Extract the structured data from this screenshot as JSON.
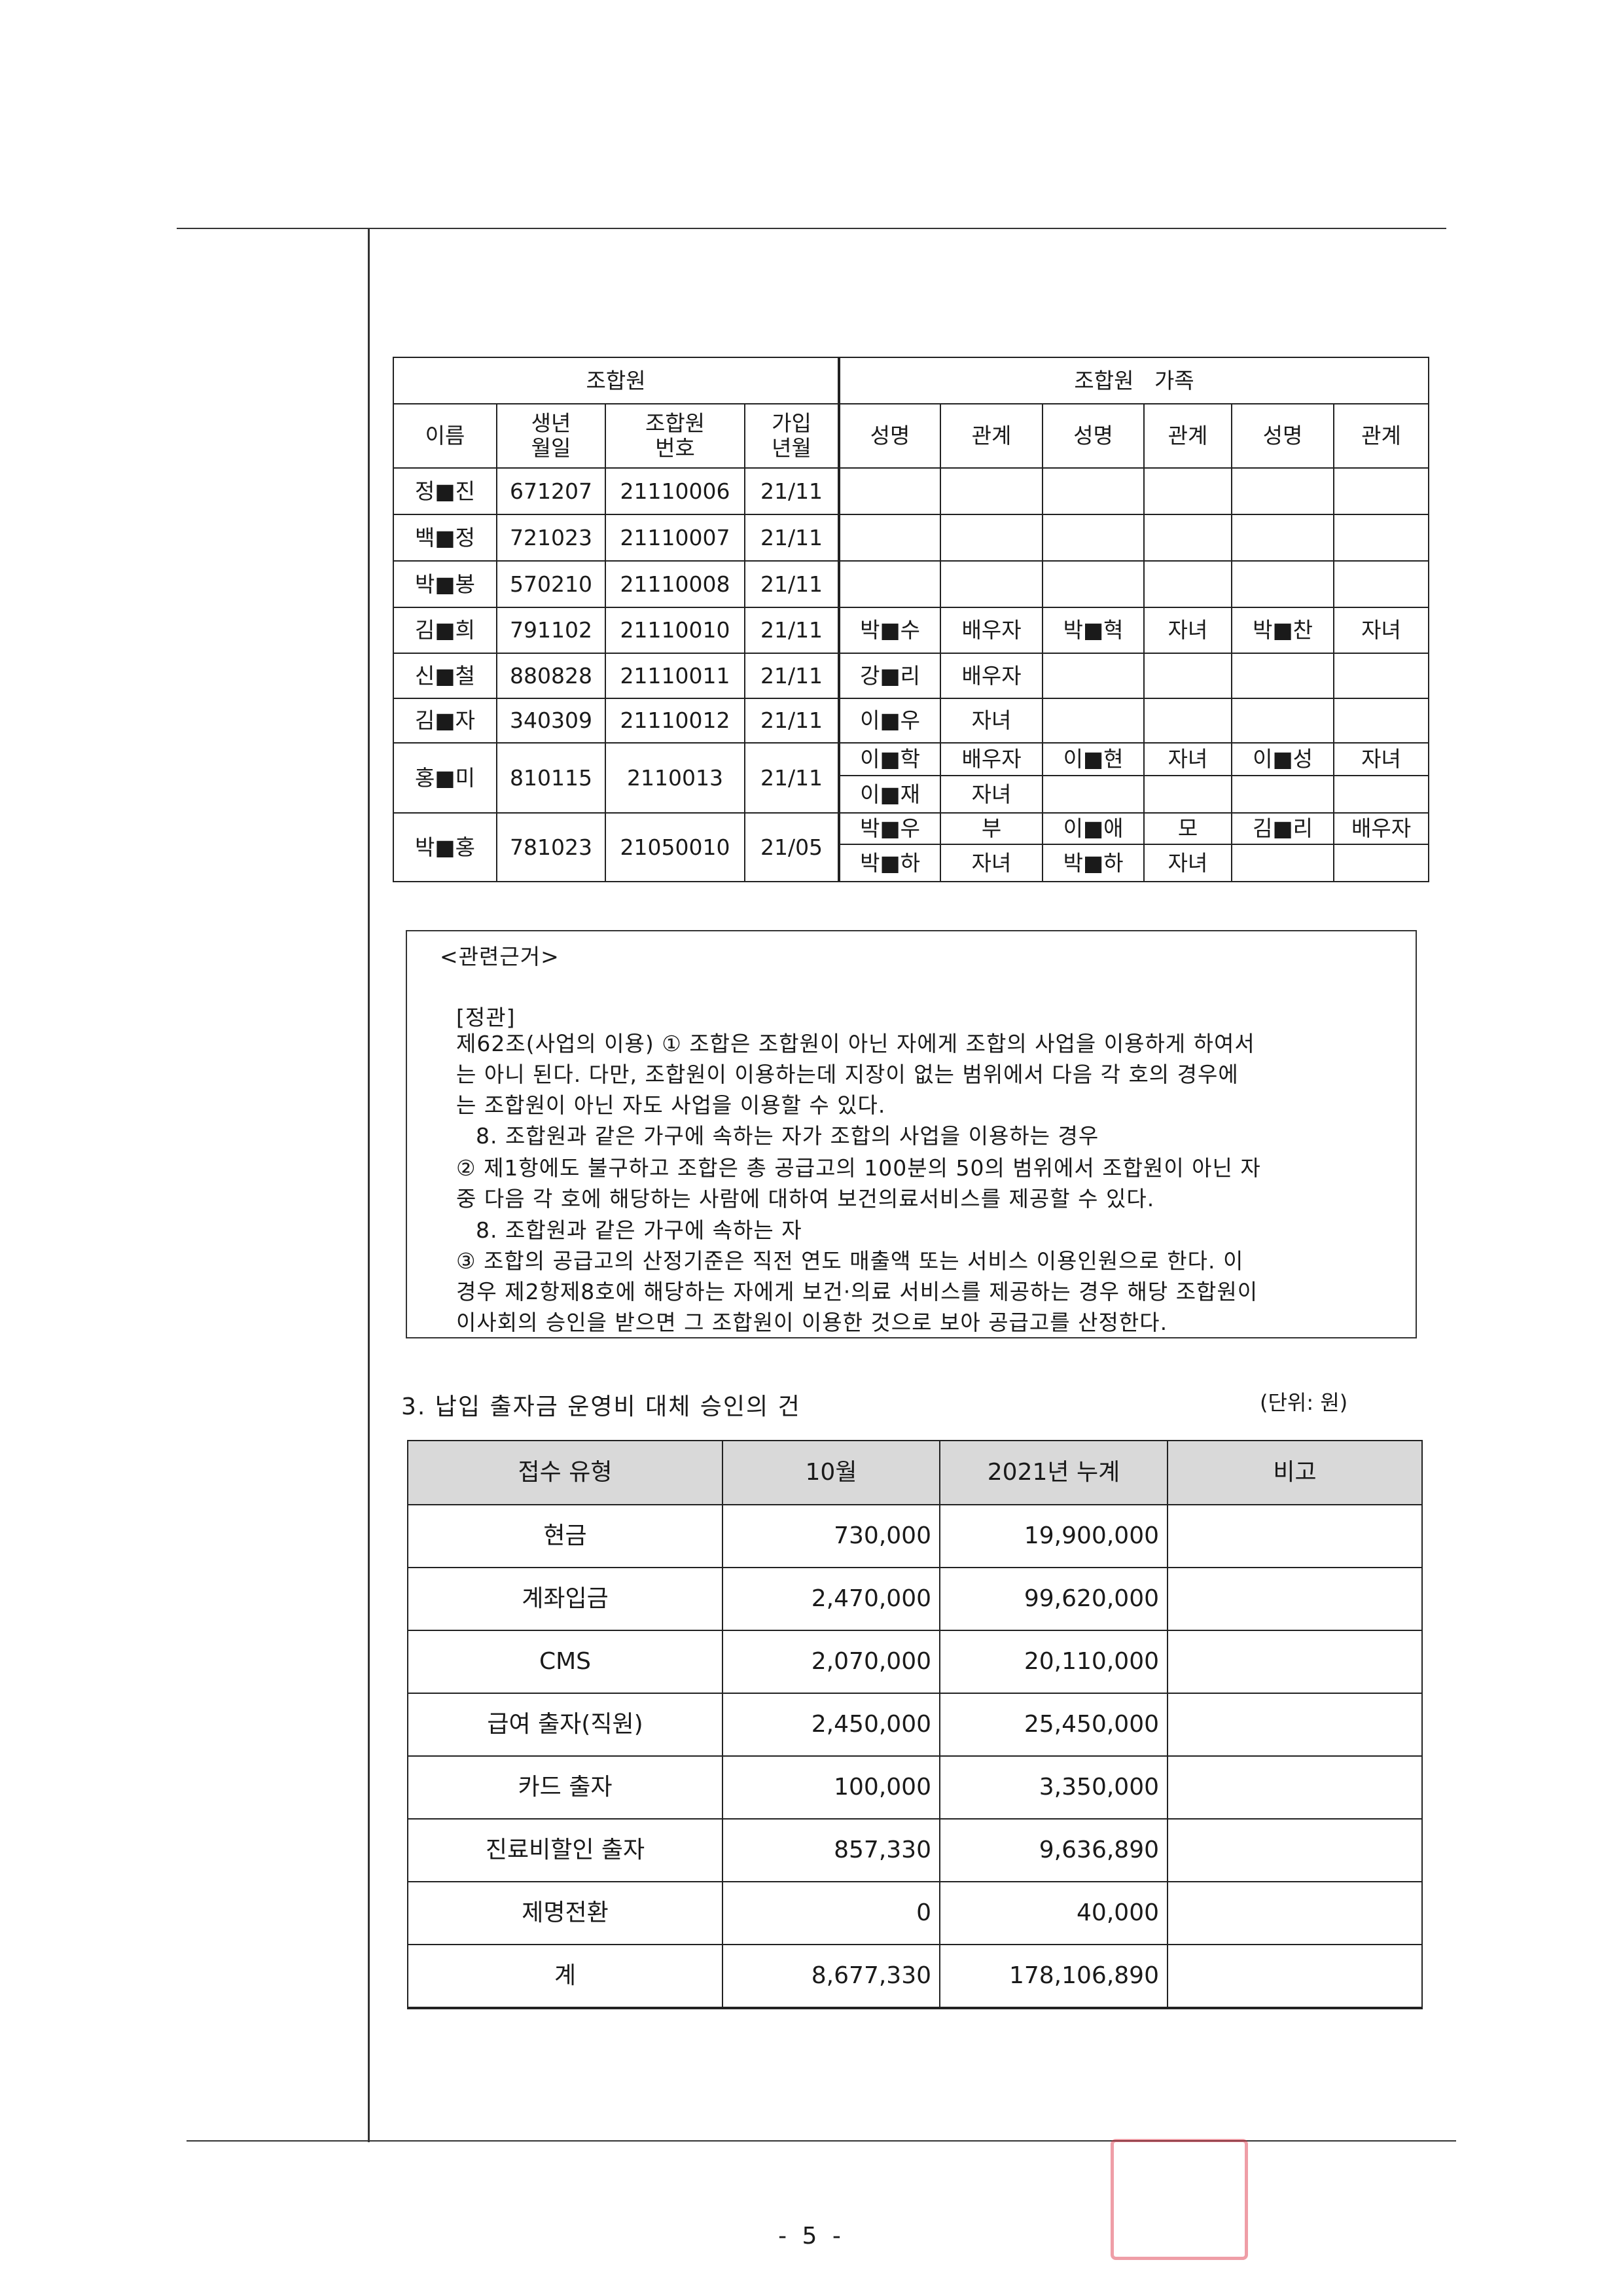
{
  "members_table": {
    "group_headers": [
      "조합원",
      "조합원   가족"
    ],
    "columns": [
      "이름",
      "생년\n월일",
      "조합원\n번호",
      "가입\n년월",
      "성명",
      "관계",
      "성명",
      "관계",
      "성명",
      "관계"
    ],
    "rows": [
      [
        "정■진",
        "671207",
        "21110006",
        "21/11",
        "",
        "",
        "",
        "",
        "",
        ""
      ],
      [
        "백■정",
        "721023",
        "21110007",
        "21/11",
        "",
        "",
        "",
        "",
        "",
        ""
      ],
      [
        "박■봉",
        "570210",
        "21110008",
        "21/11",
        "",
        "",
        "",
        "",
        "",
        ""
      ],
      [
        "김■희",
        "791102",
        "21110010",
        "21/11",
        "박■수",
        "배우자",
        "박■혁",
        "자녀",
        "박■찬",
        "자녀"
      ],
      [
        "신■철",
        "880828",
        "21110011",
        "21/11",
        "강■리",
        "배우자",
        "",
        "",
        "",
        ""
      ],
      [
        "김■자",
        "340309",
        "21110012",
        "21/11",
        "이■우",
        "자녀",
        "",
        "",
        "",
        ""
      ],
      [
        "홍■미",
        "810115",
        "2110013",
        "21/11",
        "이■학",
        "배우자",
        "이■현",
        "자녀",
        "이■성",
        "자녀"
      ],
      [
        "",
        "",
        "",
        "",
        "이■재",
        "자녀",
        "",
        "",
        "",
        ""
      ],
      [
        "박■홍",
        "781023",
        "21050010",
        "21/05",
        "박■우",
        "부",
        "이■애",
        "모",
        "김■리",
        "배우자"
      ],
      [
        "",
        "",
        "",
        "",
        "박■하",
        "자녀",
        "박■하",
        "자녀",
        "",
        ""
      ]
    ]
  },
  "basis_box": {
    "title": "<관련근거>",
    "subtitle": "[정관]",
    "lines": [
      "제62조(사업의 이용) ① 조합은 조합원이 아닌 자에게 조합의 사업을 이용하게 하여서",
      "는 아니 된다. 다만, 조합원이 이용하는데 지장이 없는 범위에서 다음 각 호의 경우에",
      "는 조합원이 아닌 자도 사업을 이용할 수 있다.",
      "8. 조합원과 같은 가구에 속하는 자가 조합의 사업을 이용하는 경우",
      "② 제1항에도 불구하고 조합은 총 공급고의 100분의 50의 범위에서 조합원이 아닌 자",
      "중 다음 각 호에 해당하는 사람에 대하여 보건의료서비스를 제공할 수 있다.",
      "8. 조합원과 같은 가구에 속하는 자",
      "③ 조합의 공급고의 산정기준은 직전 연도 매출액 또는 서비스 이용인원으로 한다. 이",
      "경우 제2항제8호에 해당하는 자에게 보건·의료 서비스를 제공하는 경우 해당 조합원이",
      "이사회의 승인을 받으면 그 조합원이 이용한 것으로 보아 공급고를 산정한다."
    ]
  },
  "section3": {
    "title": "3. 납입 출자금 운영비 대체 승인의 건",
    "unit": "(단위: 원)",
    "columns": [
      "접수 유형",
      "10월",
      "2021년 누계",
      "비고"
    ],
    "rows": [
      [
        "현금",
        "730,000",
        "19,900,000",
        ""
      ],
      [
        "계좌입금",
        "2,470,000",
        "99,620,000",
        ""
      ],
      [
        "CMS",
        "2,070,000",
        "20,110,000",
        ""
      ],
      [
        "급여 출자(직원)",
        "2,450,000",
        "25,450,000",
        ""
      ],
      [
        "카드 출자",
        "100,000",
        "3,350,000",
        ""
      ],
      [
        "진료비할인 출자",
        "857,330",
        "9,636,890",
        ""
      ],
      [
        "제명전환",
        "0",
        "40,000",
        ""
      ],
      [
        "계",
        "8,677,330",
        "178,106,890",
        ""
      ]
    ]
  },
  "page_number": "- 5 -"
}
